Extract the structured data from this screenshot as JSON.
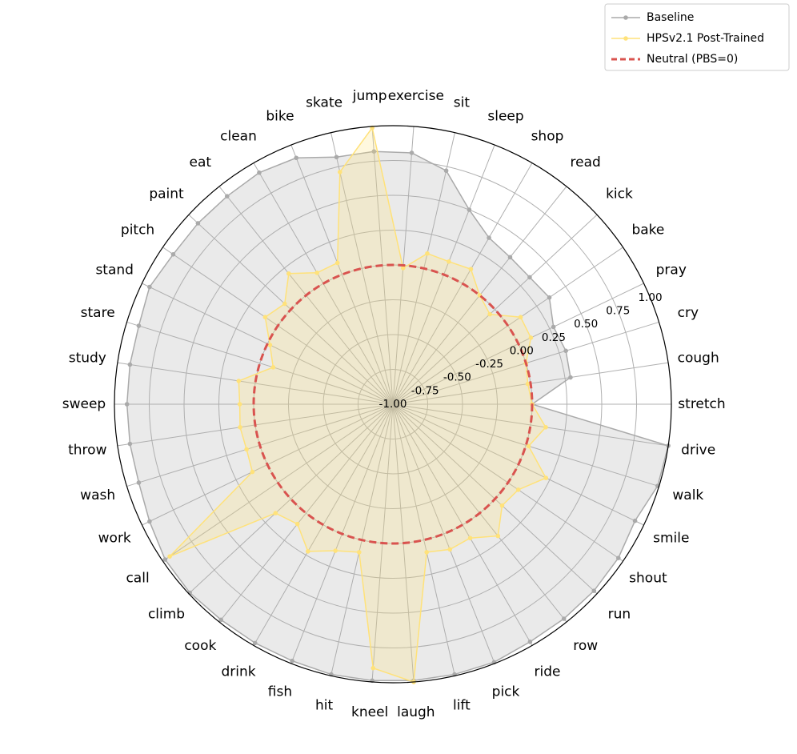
{
  "chart_data": {
    "type": "radar",
    "categories": [
      "stretch",
      "cough",
      "cry",
      "pray",
      "bake",
      "kick",
      "read",
      "shop",
      "sleep",
      "sit",
      "exercise",
      "jump",
      "skate",
      "bike",
      "clean",
      "eat",
      "paint",
      "pitch",
      "stand",
      "stare",
      "study",
      "sweep",
      "throw",
      "wash",
      "work",
      "call",
      "climb",
      "cook",
      "drink",
      "fish",
      "hit",
      "kneel",
      "laugh",
      "lift",
      "pick",
      "ride",
      "row",
      "run",
      "shout",
      "smile",
      "walk",
      "drive"
    ],
    "series": [
      {
        "name": "Baseline",
        "color": "#aaaaaa",
        "values": [
          0.0,
          0.29,
          0.3,
          0.28,
          0.36,
          0.34,
          0.35,
          0.38,
          0.5,
          0.72,
          0.81,
          0.82,
          0.82,
          0.9,
          0.92,
          0.91,
          0.91,
          0.91,
          0.94,
          0.91,
          0.91,
          0.91,
          0.91,
          0.91,
          0.94,
          0.98,
          0.99,
          0.98,
          0.98,
          0.98,
          0.99,
          0.99,
          0.99,
          0.99,
          0.99,
          0.97,
          0.97,
          0.97,
          0.96,
          0.93,
          0.99,
          1.0
        ]
      },
      {
        "name": "HPSv2.1 Post-Trained",
        "color": "#ffe27a",
        "values": [
          0.0,
          -0.02,
          0.0,
          0.1,
          0.11,
          -0.05,
          0.0,
          0.12,
          0.1,
          0.11,
          -0.02,
          0.99,
          0.71,
          0.09,
          0.09,
          0.2,
          0.06,
          0.11,
          -0.02,
          -0.1,
          0.12,
          0.1,
          0.11,
          0.1,
          0.12,
          0.94,
          0.15,
          0.1,
          0.22,
          0.13,
          0.09,
          0.9,
          1.0,
          0.09,
          0.12,
          0.11,
          0.21,
          0.07,
          0.09,
          0.22,
          0.02,
          0.11
        ]
      }
    ],
    "reference_line": {
      "name": "Neutral (PBS=0)",
      "value": 0,
      "color": "#d9534f"
    },
    "ylim": [
      -1,
      1
    ],
    "yticks": [
      {
        "value": -1,
        "label": "-1.00"
      },
      {
        "value": -0.75,
        "label": "-0.75"
      },
      {
        "value": -0.5,
        "label": "-0.50"
      },
      {
        "value": -0.25,
        "label": "-0.25"
      },
      {
        "value": 0,
        "label": "0.00"
      },
      {
        "value": 0.25,
        "label": "0.25"
      },
      {
        "value": 0.5,
        "label": "0.50"
      },
      {
        "value": 0.75,
        "label": "0.75"
      },
      {
        "value": 1,
        "label": "1.00"
      }
    ],
    "grid": true,
    "legend": "upper right"
  }
}
